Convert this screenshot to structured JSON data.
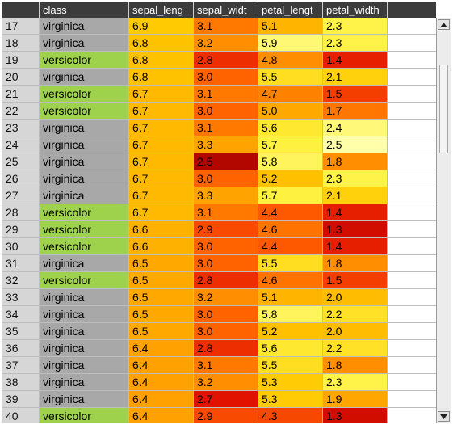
{
  "columns": {
    "corner": "",
    "class": "class",
    "sepal_length": "sepal_leng",
    "sepal_width": "sepal_widt",
    "petal_length": "petal_lengt",
    "petal_width": "petal_width"
  },
  "colors": {
    "class_virginica": "#a8a8a8",
    "class_versicolor": "#9ed24d",
    "scale_low": "#ffff99",
    "scale_high": "#990000"
  },
  "rows": [
    {
      "idx": "17",
      "class": "virginica",
      "sl": "6.9",
      "sw": "3.1",
      "pl": "5.1",
      "pw": "2.3"
    },
    {
      "idx": "18",
      "class": "virginica",
      "sl": "6.8",
      "sw": "3.2",
      "pl": "5.9",
      "pw": "2.3"
    },
    {
      "idx": "19",
      "class": "versicolor",
      "sl": "6.8",
      "sw": "2.8",
      "pl": "4.8",
      "pw": "1.4"
    },
    {
      "idx": "20",
      "class": "virginica",
      "sl": "6.8",
      "sw": "3.0",
      "pl": "5.5",
      "pw": "2.1"
    },
    {
      "idx": "21",
      "class": "versicolor",
      "sl": "6.7",
      "sw": "3.1",
      "pl": "4.7",
      "pw": "1.5"
    },
    {
      "idx": "22",
      "class": "versicolor",
      "sl": "6.7",
      "sw": "3.0",
      "pl": "5.0",
      "pw": "1.7"
    },
    {
      "idx": "23",
      "class": "virginica",
      "sl": "6.7",
      "sw": "3.1",
      "pl": "5.6",
      "pw": "2.4"
    },
    {
      "idx": "24",
      "class": "virginica",
      "sl": "6.7",
      "sw": "3.3",
      "pl": "5.7",
      "pw": "2.5"
    },
    {
      "idx": "25",
      "class": "virginica",
      "sl": "6.7",
      "sw": "2.5",
      "pl": "5.8",
      "pw": "1.8"
    },
    {
      "idx": "26",
      "class": "virginica",
      "sl": "6.7",
      "sw": "3.0",
      "pl": "5.2",
      "pw": "2.3"
    },
    {
      "idx": "27",
      "class": "virginica",
      "sl": "6.7",
      "sw": "3.3",
      "pl": "5.7",
      "pw": "2.1"
    },
    {
      "idx": "28",
      "class": "versicolor",
      "sl": "6.7",
      "sw": "3.1",
      "pl": "4.4",
      "pw": "1.4"
    },
    {
      "idx": "29",
      "class": "versicolor",
      "sl": "6.6",
      "sw": "2.9",
      "pl": "4.6",
      "pw": "1.3"
    },
    {
      "idx": "30",
      "class": "versicolor",
      "sl": "6.6",
      "sw": "3.0",
      "pl": "4.4",
      "pw": "1.4"
    },
    {
      "idx": "31",
      "class": "virginica",
      "sl": "6.5",
      "sw": "3.0",
      "pl": "5.5",
      "pw": "1.8"
    },
    {
      "idx": "32",
      "class": "versicolor",
      "sl": "6.5",
      "sw": "2.8",
      "pl": "4.6",
      "pw": "1.5"
    },
    {
      "idx": "33",
      "class": "virginica",
      "sl": "6.5",
      "sw": "3.2",
      "pl": "5.1",
      "pw": "2.0"
    },
    {
      "idx": "34",
      "class": "virginica",
      "sl": "6.5",
      "sw": "3.0",
      "pl": "5.8",
      "pw": "2.2"
    },
    {
      "idx": "35",
      "class": "virginica",
      "sl": "6.5",
      "sw": "3.0",
      "pl": "5.2",
      "pw": "2.0"
    },
    {
      "idx": "36",
      "class": "virginica",
      "sl": "6.4",
      "sw": "2.8",
      "pl": "5.6",
      "pw": "2.2"
    },
    {
      "idx": "37",
      "class": "virginica",
      "sl": "6.4",
      "sw": "3.1",
      "pl": "5.5",
      "pw": "1.8"
    },
    {
      "idx": "38",
      "class": "virginica",
      "sl": "6.4",
      "sw": "3.2",
      "pl": "5.3",
      "pw": "2.3"
    },
    {
      "idx": "39",
      "class": "virginica",
      "sl": "6.4",
      "sw": "2.7",
      "pl": "5.3",
      "pw": "1.9"
    },
    {
      "idx": "40",
      "class": "versicolor",
      "sl": "6.4",
      "sw": "2.9",
      "pl": "4.3",
      "pw": "1.3"
    }
  ],
  "scrollbar": {
    "up_icon": "arrow-up-icon",
    "down_icon": "arrow-down-icon",
    "position_fraction": 0.12
  }
}
